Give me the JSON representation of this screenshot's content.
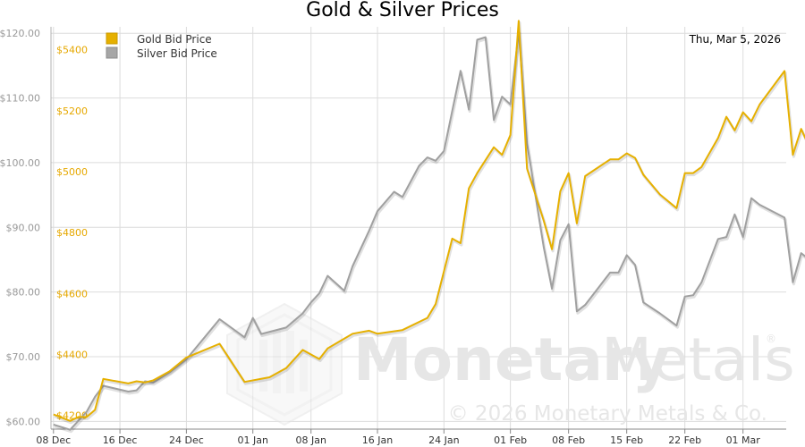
{
  "chart_data": {
    "type": "line",
    "title": "Gold & Silver Prices",
    "date": "Thu, Mar 5, 2026",
    "watermark": {
      "brand_left": "Monetary",
      "brand_right": "Metals",
      "copyright": "© 2026 Monetary Metals & Co.",
      "registered": "®"
    },
    "x_labels": [
      "08 Dec",
      "16 Dec",
      "24 Dec",
      "01 Jan",
      "08 Jan",
      "16 Jan",
      "24 Jan",
      "01 Feb",
      "08 Feb",
      "15 Feb",
      "22 Feb",
      "01 Mar"
    ],
    "x_label_days": [
      0,
      8,
      16,
      24,
      31,
      39,
      47,
      55,
      62,
      69,
      76,
      83
    ],
    "x_range": [
      -0.3,
      88.2
    ],
    "y_left": {
      "ticks": [
        60,
        70,
        80,
        90,
        100,
        110,
        120
      ],
      "tick_labels": [
        "$60.00",
        "$70.00",
        "$80.00",
        "$90.00",
        "$100.00",
        "$110.00",
        "$120.00"
      ],
      "range": [
        58.8,
        121.0
      ]
    },
    "y_right": {
      "ticks": [
        4200,
        4400,
        4600,
        4800,
        5000,
        5200,
        5400
      ],
      "tick_labels": [
        "$4200",
        "$4400",
        "$4600",
        "$4800",
        "$5000",
        "$5200",
        "$5400"
      ],
      "range": [
        4155,
        5475
      ]
    },
    "grid": true,
    "legend_position": "top-left",
    "series": [
      {
        "name": "Gold Bid Price",
        "axis": "right",
        "color": "#e6b000",
        "points": [
          [
            0,
            4203
          ],
          [
            2,
            4182
          ],
          [
            3,
            4195
          ],
          [
            4,
            4195
          ],
          [
            5,
            4218
          ],
          [
            6,
            4320
          ],
          [
            9,
            4305
          ],
          [
            10,
            4312
          ],
          [
            11,
            4308
          ],
          [
            12,
            4315
          ],
          [
            14,
            4345
          ],
          [
            16,
            4390
          ],
          [
            20,
            4435
          ],
          [
            23,
            4310
          ],
          [
            26,
            4325
          ],
          [
            28,
            4355
          ],
          [
            30,
            4415
          ],
          [
            31,
            4400
          ],
          [
            32,
            4385
          ],
          [
            33,
            4420
          ],
          [
            36,
            4468
          ],
          [
            38,
            4478
          ],
          [
            39,
            4468
          ],
          [
            42,
            4480
          ],
          [
            45,
            4520
          ],
          [
            46,
            4565
          ],
          [
            48,
            4780
          ],
          [
            49,
            4765
          ],
          [
            50,
            4945
          ],
          [
            51,
            4995
          ],
          [
            53,
            5080
          ],
          [
            54,
            5055
          ],
          [
            55,
            5120
          ],
          [
            56,
            5495
          ],
          [
            57,
            5010
          ],
          [
            59,
            4840
          ],
          [
            60,
            4745
          ],
          [
            61,
            4935
          ],
          [
            62,
            4995
          ],
          [
            63,
            4830
          ],
          [
            64,
            4985
          ],
          [
            67,
            5040
          ],
          [
            68,
            5040
          ],
          [
            69,
            5060
          ],
          [
            70,
            5045
          ],
          [
            71,
            4990
          ],
          [
            73,
            4925
          ],
          [
            75,
            4880
          ],
          [
            76,
            4995
          ],
          [
            77,
            4995
          ],
          [
            78,
            5015
          ],
          [
            80,
            5110
          ],
          [
            81,
            5180
          ],
          [
            82,
            5135
          ],
          [
            83,
            5195
          ],
          [
            84,
            5165
          ],
          [
            85,
            5220
          ],
          [
            88,
            5330
          ],
          [
            89,
            5055
          ],
          [
            90,
            5140
          ],
          [
            91,
            5080
          ]
        ]
      },
      {
        "name": "Silver Bid Price",
        "axis": "left",
        "color": "#a0a0a0",
        "points": [
          [
            0,
            59.5
          ],
          [
            2,
            58.7
          ],
          [
            4,
            61.5
          ],
          [
            5,
            63.8
          ],
          [
            6,
            65.5
          ],
          [
            9,
            64.6
          ],
          [
            10,
            64.8
          ],
          [
            11,
            66.2
          ],
          [
            12,
            66.0
          ],
          [
            14,
            67.6
          ],
          [
            16,
            69.6
          ],
          [
            20,
            75.8
          ],
          [
            23,
            73.0
          ],
          [
            24,
            76.0
          ],
          [
            25,
            73.5
          ],
          [
            28,
            74.5
          ],
          [
            30,
            76.7
          ],
          [
            31,
            78.4
          ],
          [
            32,
            79.8
          ],
          [
            33,
            82.5
          ],
          [
            35,
            80.2
          ],
          [
            36,
            84.0
          ],
          [
            38,
            89.5
          ],
          [
            39,
            92.5
          ],
          [
            41,
            95.5
          ],
          [
            42,
            94.7
          ],
          [
            44,
            99.5
          ],
          [
            45,
            100.8
          ],
          [
            46,
            100.3
          ],
          [
            47,
            101.8
          ],
          [
            48,
            108.0
          ],
          [
            49,
            114.2
          ],
          [
            50,
            108.2
          ],
          [
            51,
            119.0
          ],
          [
            52,
            119.4
          ],
          [
            53,
            106.6
          ],
          [
            54,
            110.2
          ],
          [
            55,
            109.0
          ],
          [
            56,
            120.3
          ],
          [
            57,
            103.0
          ],
          [
            59,
            87.0
          ],
          [
            60,
            80.5
          ],
          [
            61,
            88.0
          ],
          [
            62,
            90.5
          ],
          [
            63,
            77.0
          ],
          [
            64,
            78.0
          ],
          [
            67,
            83.0
          ],
          [
            68,
            83.0
          ],
          [
            69,
            85.7
          ],
          [
            70,
            84.2
          ],
          [
            71,
            78.4
          ],
          [
            73,
            76.7
          ],
          [
            75,
            74.8
          ],
          [
            76,
            79.3
          ],
          [
            77,
            79.5
          ],
          [
            78,
            81.5
          ],
          [
            80,
            88.2
          ],
          [
            81,
            88.5
          ],
          [
            82,
            92.0
          ],
          [
            83,
            88.5
          ],
          [
            84,
            94.5
          ],
          [
            85,
            93.5
          ],
          [
            88,
            91.5
          ],
          [
            89,
            81.5
          ],
          [
            90,
            86.0
          ],
          [
            91,
            85.0
          ]
        ]
      }
    ]
  }
}
